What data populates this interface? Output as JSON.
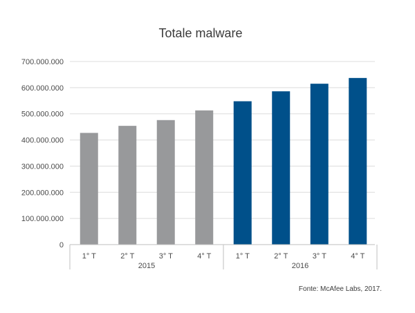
{
  "chart_data": {
    "type": "bar",
    "title": "Totale malware",
    "xlabel": "",
    "ylabel": "",
    "ylim": [
      0,
      700000000
    ],
    "yticks": [
      0,
      100000000,
      200000000,
      300000000,
      400000000,
      500000000,
      600000000,
      700000000
    ],
    "ytick_labels": [
      "0",
      "100.000.000",
      "200.000.000",
      "300.000.000",
      "400.000.000",
      "500.000.000",
      "600.000.000",
      "700.000.000"
    ],
    "grid": true,
    "legend": "none",
    "categories": [
      "1° T",
      "2° T",
      "3° T",
      "4° T",
      "1° T",
      "2° T",
      "3° T",
      "4° T"
    ],
    "groups": [
      {
        "label": "2015",
        "count": 4,
        "color": "#98999b"
      },
      {
        "label": "2016",
        "count": 4,
        "color": "#00508a"
      }
    ],
    "values": [
      427000000,
      454000000,
      476000000,
      513000000,
      548000000,
      586000000,
      615000000,
      637000000
    ]
  },
  "source": "Fonte: McAfee Labs, 2017."
}
